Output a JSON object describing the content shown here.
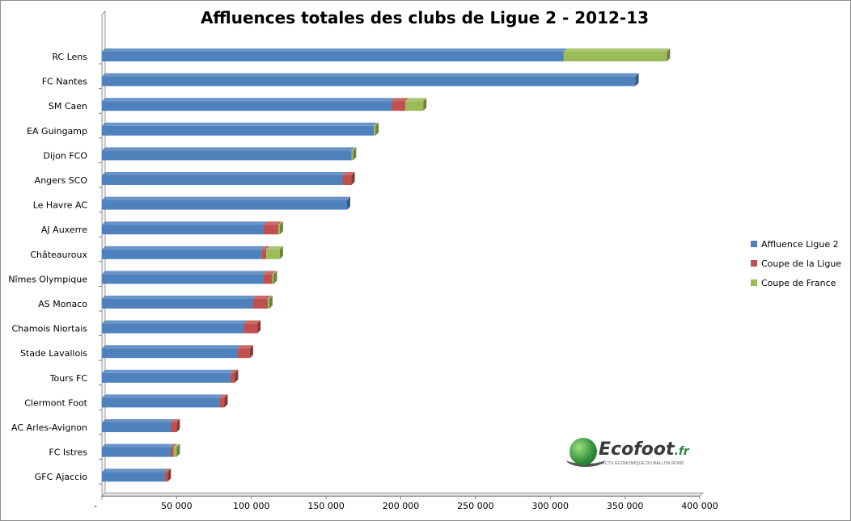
{
  "chart_data": {
    "type": "bar",
    "orientation": "horizontal",
    "stacked": true,
    "title": "Affluences totales des clubs de Ligue 2 - 2012-13",
    "categories": [
      "RC Lens",
      "FC Nantes",
      "SM Caen",
      "EA Guingamp",
      "Dijon FCO",
      "Angers SCO",
      "Le Havre AC",
      "AJ Auxerre",
      "Châteauroux",
      "Nîmes Olympique",
      "AS Monaco",
      "Chamois Niortais",
      "Stade Lavallois",
      "Tours FC",
      "Clermont Foot",
      "AC Arles-Avignon",
      "FC Istres",
      "GFC Ajaccio"
    ],
    "series": [
      {
        "name": "Affluence Ligue 2",
        "color": "#4f81bd",
        "values": [
          309000,
          357000,
          194000,
          182000,
          167000,
          161000,
          164000,
          108000,
          107000,
          108000,
          101000,
          95000,
          91000,
          86000,
          79000,
          46000,
          46000,
          42000
        ]
      },
      {
        "name": "Coupe de la Ligue",
        "color": "#c0504d",
        "values": [
          0,
          0,
          9000,
          0,
          0,
          6000,
          0,
          10000,
          3000,
          6000,
          10000,
          9000,
          8000,
          3000,
          3000,
          4000,
          2000,
          2000
        ]
      },
      {
        "name": "Coupe de France",
        "color": "#9bbb59",
        "values": [
          69000,
          0,
          12000,
          1000,
          1000,
          0,
          0,
          1000,
          9000,
          1000,
          1000,
          0,
          0,
          0,
          0,
          0,
          2000,
          0
        ]
      }
    ],
    "x_ticks": [
      "-",
      "50 000",
      "100 000",
      "150 000",
      "200 000",
      "250 000",
      "300 000",
      "350 000",
      "400 000"
    ],
    "xlim": [
      0,
      400000
    ],
    "legend_position": "right",
    "grid": false
  },
  "logo": {
    "name": "Ecofoot",
    "domain": ".fr",
    "tagline": "L'ACTU ÉCONOMIQUE DU BALLON ROND"
  }
}
